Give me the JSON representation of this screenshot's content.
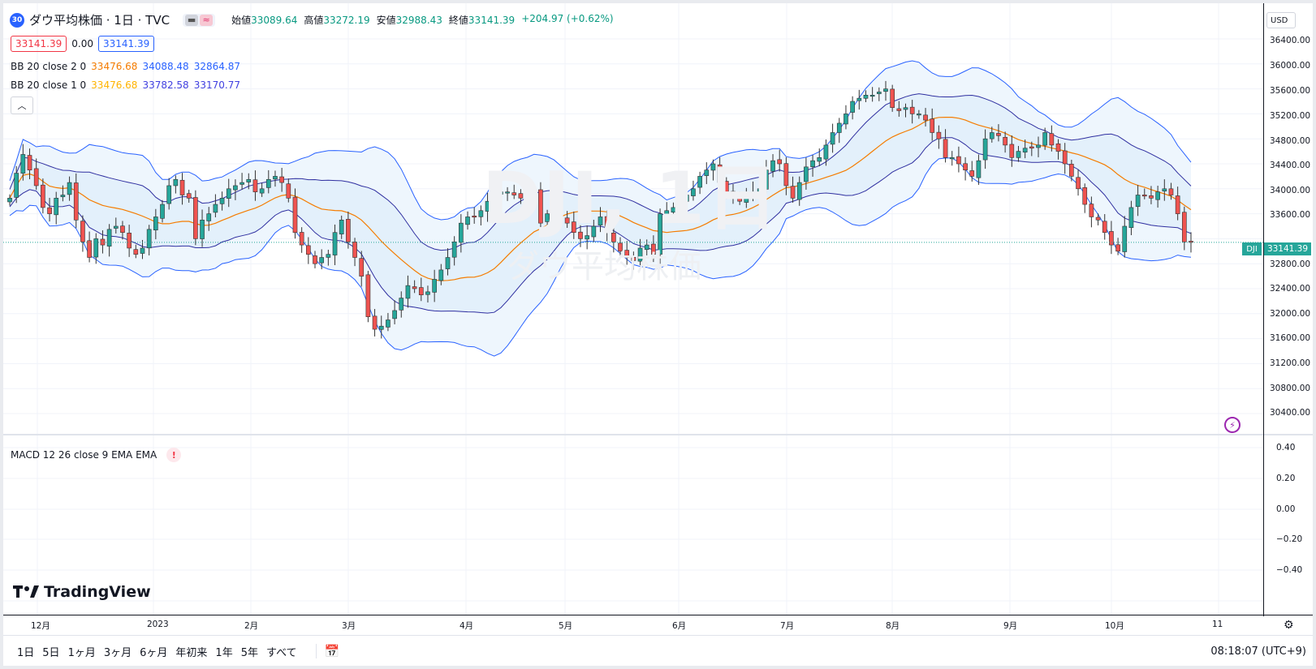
{
  "header": {
    "badge": "30",
    "title": "ダウ平均株価 · 1日 · TVC",
    "open_label": "始値",
    "open": "33089.64",
    "high_label": "高値",
    "high": "33272.19",
    "low_label": "安値",
    "low": "32988.43",
    "close_label": "終値",
    "close": "33141.39",
    "change": "+204.97 (+0.62%)"
  },
  "price_row": {
    "bid": "33141.39",
    "spread": "0.00",
    "ask": "33141.39"
  },
  "indicators": {
    "bb2": {
      "name": "BB 20 close 2 0",
      "basis": "33476.68",
      "upper": "34088.48",
      "lower": "32864.87"
    },
    "bb1": {
      "name": "BB 20 close 1 0",
      "basis": "33476.68",
      "upper": "33782.58",
      "lower": "33170.77"
    }
  },
  "watermark": {
    "symbol": "DJI, 1日",
    "name": "ダウ平均株価"
  },
  "macd": {
    "label": "MACD 12 26 close 9 EMA EMA",
    "warn": "!"
  },
  "logo": {
    "text": "TradingView"
  },
  "axis": {
    "currency": "USD",
    "price_labels": [
      "36400.00",
      "36000.00",
      "35600.00",
      "35200.00",
      "34800.00",
      "34400.00",
      "34000.00",
      "33600.00",
      "32800.00",
      "32400.00",
      "32000.00",
      "31600.00",
      "31200.00",
      "30800.00",
      "30400.00"
    ],
    "macd_labels": [
      "0.40",
      "0.20",
      "0.00",
      "−0.20",
      "−0.40"
    ],
    "last_price": "33141.39",
    "symbol_tag": "DJI",
    "months": [
      "12月",
      "2023",
      "2月",
      "3月",
      "4月",
      "5月",
      "6月",
      "7月",
      "8月",
      "9月",
      "10月",
      "11"
    ]
  },
  "bottom": {
    "ranges": [
      "1日",
      "5日",
      "1ヶ月",
      "3ヶ月",
      "6ヶ月",
      "年初来",
      "1年",
      "5年",
      "すべて"
    ],
    "calendar_icon": "calendar-icon",
    "clock": "08:18:07 (UTC+9)"
  },
  "colors": {
    "up": "#26a69a",
    "down": "#ef5350",
    "band": "#2962ff",
    "basis": "#f57c00",
    "fill": "#e3f2fd"
  },
  "chart_data": {
    "type": "candlestick",
    "title": "ダウ平均株価 · 1日 · TVC",
    "ylim": [
      30400,
      36400
    ],
    "x_months": [
      "12月",
      "2023",
      "2月",
      "3月",
      "4月",
      "5月",
      "6月",
      "7月",
      "8月",
      "9月",
      "10月",
      "11"
    ],
    "close_approx": [
      33850,
      34250,
      34550,
      34300,
      34050,
      33700,
      33600,
      33850,
      33900,
      34100,
      33500,
      33150,
      32900,
      33200,
      33100,
      33350,
      33400,
      33300,
      33050,
      32950,
      33050,
      33350,
      33550,
      33750,
      34050,
      34150,
      33900,
      33850,
      33200,
      33500,
      33600,
      33750,
      33850,
      34000,
      34050,
      34100,
      34150,
      33950,
      34000,
      34150,
      34200,
      34100,
      33850,
      33300,
      33100,
      32950,
      32800,
      32900,
      32950,
      33300,
      33500,
      33150,
      32900,
      32600,
      31950,
      31750,
      31800,
      31900,
      32050,
      32250,
      32450,
      32400,
      32300,
      32350,
      32550,
      32700,
      32900,
      33150,
      33450,
      33550,
      33550,
      33650,
      33800,
      33900,
      33950,
      33950,
      33900,
      33850,
      33850,
      34000,
      33450,
      33600,
      33700,
      33550,
      33450,
      33300,
      33200,
      33250,
      33400,
      33550,
      33300,
      33150,
      33000,
      32900,
      32850,
      33050,
      33100,
      32950,
      33600,
      33650,
      33700,
      33800,
      33900,
      34000,
      34200,
      34300,
      34400,
      34100,
      33950,
      33900,
      33800,
      33900,
      33950,
      34000,
      34300,
      34450,
      34400,
      34050,
      33850,
      34100,
      34350,
      34450,
      34500,
      34700,
      34900,
      35050,
      35200,
      35400,
      35450,
      35500,
      35500,
      35550,
      35600,
      35300,
      35250,
      35300,
      35200,
      35200,
      35100,
      34900,
      34800,
      34500,
      34500,
      34400,
      34300,
      34200,
      34450,
      34800,
      34900,
      34850,
      34700,
      34500,
      34600,
      34650,
      34650,
      34700,
      34900,
      34700,
      34600,
      34400,
      34200,
      34000,
      33750,
      33550,
      33500,
      33300,
      33100,
      33000,
      33400,
      33700,
      33900,
      33900,
      33850,
      33950,
      34000,
      33900,
      33600,
      33150,
      33141.39
    ]
  }
}
